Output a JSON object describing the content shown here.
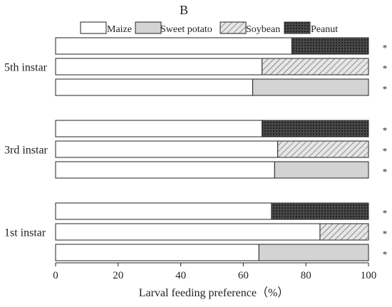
{
  "chart_data": {
    "type": "bar",
    "orientation": "horizontal",
    "stacked": true,
    "panel_label": "B",
    "title": "",
    "xlabel": "Larval feeding preference（%）",
    "ylabel": "",
    "xlim": [
      0,
      100
    ],
    "x_ticks": [
      "0",
      "20",
      "40",
      "60",
      "80",
      "100"
    ],
    "grid": false,
    "legend_position": "top",
    "legend": [
      {
        "name": "Maize",
        "pattern": "none"
      },
      {
        "name": "Sweet potato",
        "pattern": "solid-gray"
      },
      {
        "name": "Soybean",
        "pattern": "diagonal-hatch"
      },
      {
        "name": "Peanut",
        "pattern": "crosshatch"
      }
    ],
    "significance_marker": "*",
    "groups": [
      {
        "label": "5th instar",
        "bars": [
          {
            "segments": [
              {
                "series": "Maize",
                "value": 75.5
              },
              {
                "series": "Peanut",
                "value": 24.5
              }
            ],
            "marker": "*"
          },
          {
            "segments": [
              {
                "series": "Maize",
                "value": 66
              },
              {
                "series": "Soybean",
                "value": 34
              }
            ],
            "marker": "*"
          },
          {
            "segments": [
              {
                "series": "Maize",
                "value": 63
              },
              {
                "series": "Sweet potato",
                "value": 37
              }
            ],
            "marker": "*"
          }
        ]
      },
      {
        "label": "3rd instar",
        "bars": [
          {
            "segments": [
              {
                "series": "Maize",
                "value": 66
              },
              {
                "series": "Peanut",
                "value": 34
              }
            ],
            "marker": "*"
          },
          {
            "segments": [
              {
                "series": "Maize",
                "value": 71
              },
              {
                "series": "Soybean",
                "value": 29
              }
            ],
            "marker": "*"
          },
          {
            "segments": [
              {
                "series": "Maize",
                "value": 70
              },
              {
                "series": "Sweet potato",
                "value": 30
              }
            ],
            "marker": "*"
          }
        ]
      },
      {
        "label": "1st instar",
        "bars": [
          {
            "segments": [
              {
                "series": "Maize",
                "value": 69
              },
              {
                "series": "Peanut",
                "value": 31
              }
            ],
            "marker": "*"
          },
          {
            "segments": [
              {
                "series": "Maize",
                "value": 84.5
              },
              {
                "series": "Soybean",
                "value": 15.5
              }
            ],
            "marker": "*"
          },
          {
            "segments": [
              {
                "series": "Maize",
                "value": 65
              },
              {
                "series": "Sweet potato",
                "value": 35
              }
            ],
            "marker": "*"
          }
        ]
      }
    ]
  }
}
